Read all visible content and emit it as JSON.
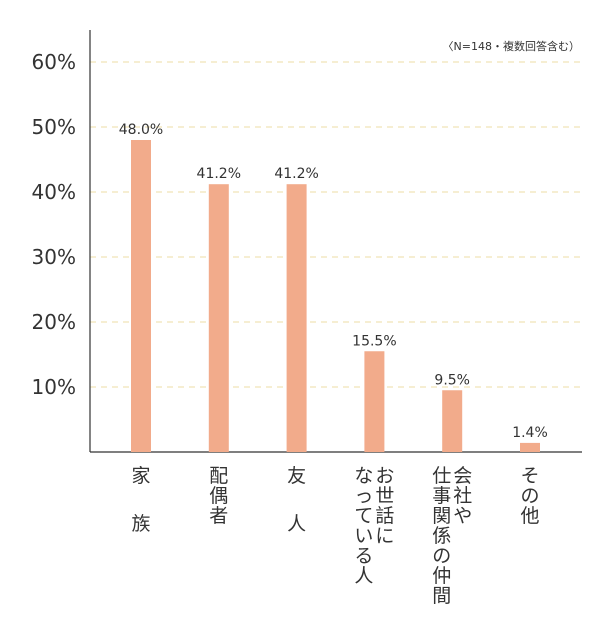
{
  "chart_data": {
    "type": "bar",
    "note": "〈N=148・複数回答含む）",
    "categories": [
      "家　族",
      "配偶者",
      "友　人",
      "お世話になっている人",
      "会社や仕事関係の仲間",
      "その他"
    ],
    "category_lines": [
      [
        "家",
        "",
        "族"
      ],
      [
        "配偶者"
      ],
      [
        "友",
        "",
        "人"
      ],
      [
        "お世話に",
        "なっている人"
      ],
      [
        "会社や",
        "仕事関係の仲間"
      ],
      [
        "その他"
      ]
    ],
    "values": [
      48.0,
      41.2,
      41.2,
      15.5,
      9.5,
      1.4
    ],
    "value_labels": [
      "48.0%",
      "41.2%",
      "41.2%",
      "15.5%",
      "9.5%",
      "1.4%"
    ],
    "y_ticks": [
      10,
      20,
      30,
      40,
      50,
      60
    ],
    "y_tick_labels": [
      "10%",
      "20%",
      "30%",
      "40%",
      "50%",
      "60%"
    ],
    "ylim": [
      0,
      60
    ],
    "grid": true,
    "colors": {
      "bar": "#f2ab8b",
      "grid": "#ecdca6",
      "axis": "#333333"
    }
  }
}
